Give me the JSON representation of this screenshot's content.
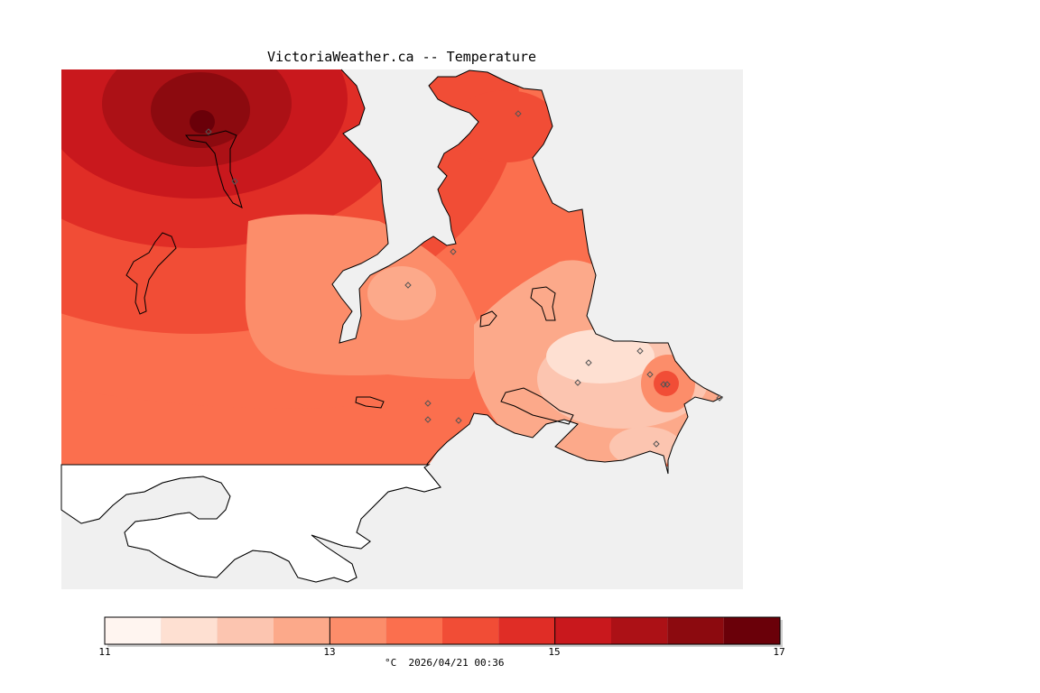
{
  "title": "VictoriaWeather.ca -- Temperature",
  "legend": {
    "min_label": "11",
    "mid_label_1": "13",
    "mid_label_2": "15",
    "max_label": "17",
    "unit": "°C",
    "timestamp": "2026/04/21 00:36",
    "levels": [
      11,
      11.5,
      12,
      12.5,
      13,
      13.5,
      14,
      14.5,
      15,
      15.5,
      16,
      16.5,
      17
    ],
    "colors": [
      "#fff5f0",
      "#fee0d2",
      "#fcc5b0",
      "#fca98a",
      "#fc8d6a",
      "#fb6f4e",
      "#f14d36",
      "#e02d26",
      "#c9181d",
      "#ac1116",
      "#8c0a0f",
      "#6a0009"
    ]
  },
  "colors": {
    "water": "#f0f0f0",
    "coast": "#000000",
    "station_marker": "#555555"
  },
  "icons": [
    "weather-station-icon"
  ]
}
